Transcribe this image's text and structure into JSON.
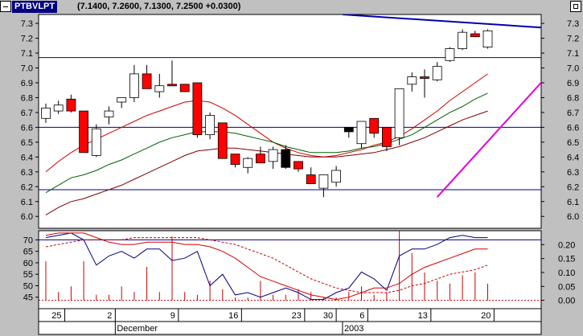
{
  "window": {
    "symbol": "PTBVLPT",
    "quote": "(7.1400, 7.2600, 7.1300, 7.2500 +0.0300)"
  },
  "colors": {
    "up_candle": "#ffffff",
    "down_candle": "#ff0000",
    "doji": "#000000",
    "trendline_up": "#e000e0",
    "trendline_resistance": "#0000b0",
    "ma_fast": "#d00000",
    "ma_mid": "#006000",
    "ma_slow": "#800000",
    "hline": "#000080",
    "osc_line": "#000080",
    "volume_bar": "#cc0000"
  },
  "icons": {
    "minimize": "minimize-icon",
    "restore": "restore-icon"
  },
  "chart_data": [
    {
      "type": "candlestick",
      "title": "",
      "y_ticks": [
        "7.3",
        "7.2",
        "7.1",
        "7.0",
        "6.9",
        "6.8",
        "6.7",
        "6.6",
        "6.5",
        "6.4",
        "6.3",
        "6.2",
        "6.1",
        "6.0"
      ],
      "ylim": [
        5.92,
        7.36
      ],
      "grid": false,
      "horizontal_lines": [
        7.07,
        6.6,
        6.18
      ],
      "trendlines": [
        {
          "name": "",
          "from": [
            23.5,
            7.36
          ],
          "to": [
            45,
            7.24
          ]
        },
        {
          "name": "",
          "from": [
            31,
            6.13
          ],
          "to": [
            42,
            7.16
          ]
        }
      ],
      "candles": [
        {
          "open": 6.66,
          "high": 6.76,
          "low": 6.63,
          "close": 6.73
        },
        {
          "open": 6.71,
          "high": 6.78,
          "low": 6.69,
          "close": 6.75
        },
        {
          "open": 6.79,
          "high": 6.82,
          "low": 6.7,
          "close": 6.71
        },
        {
          "open": 6.71,
          "high": 6.71,
          "low": 6.43,
          "close": 6.43
        },
        {
          "open": 6.41,
          "high": 6.62,
          "low": 6.4,
          "close": 6.59
        },
        {
          "open": 6.67,
          "high": 6.74,
          "low": 6.62,
          "close": 6.71
        },
        {
          "open": 6.77,
          "high": 6.8,
          "low": 6.73,
          "close": 6.8
        },
        {
          "open": 6.8,
          "high": 7.02,
          "low": 6.77,
          "close": 6.96
        },
        {
          "open": 6.96,
          "high": 7.02,
          "low": 6.86,
          "close": 6.86
        },
        {
          "open": 6.84,
          "high": 6.96,
          "low": 6.8,
          "close": 6.88
        },
        {
          "open": 6.89,
          "high": 7.05,
          "low": 6.89,
          "close": 6.89
        },
        {
          "open": 6.89,
          "high": 6.89,
          "low": 6.84,
          "close": 6.84
        },
        {
          "open": 6.9,
          "high": 6.9,
          "low": 6.53,
          "close": 6.55
        },
        {
          "open": 6.55,
          "high": 6.7,
          "low": 6.52,
          "close": 6.68
        },
        {
          "open": 6.63,
          "high": 6.63,
          "low": 6.39,
          "close": 6.39
        },
        {
          "open": 6.42,
          "high": 6.42,
          "low": 6.33,
          "close": 6.35
        },
        {
          "open": 6.33,
          "high": 6.4,
          "low": 6.29,
          "close": 6.39
        },
        {
          "open": 6.42,
          "high": 6.47,
          "low": 6.36,
          "close": 6.36
        },
        {
          "open": 6.37,
          "high": 6.47,
          "low": 6.32,
          "close": 6.45
        },
        {
          "open": 6.45,
          "high": 6.48,
          "low": 6.32,
          "close": 6.33
        },
        {
          "open": 6.37,
          "high": 6.37,
          "low": 6.3,
          "close": 6.32
        },
        {
          "open": 6.28,
          "high": 6.33,
          "low": 6.22,
          "close": 6.22
        },
        {
          "open": 6.19,
          "high": 6.28,
          "low": 6.13,
          "close": 6.28
        },
        {
          "open": 6.23,
          "high": 6.34,
          "low": 6.2,
          "close": 6.31
        },
        {
          "open": 6.57,
          "high": 6.6,
          "low": 6.53,
          "close": 6.6
        },
        {
          "open": 6.49,
          "high": 6.64,
          "low": 6.46,
          "close": 6.64
        },
        {
          "open": 6.66,
          "high": 6.66,
          "low": 6.53,
          "close": 6.56
        },
        {
          "open": 6.6,
          "high": 6.6,
          "low": 6.44,
          "close": 6.47
        },
        {
          "open": 6.53,
          "high": 6.86,
          "low": 6.48,
          "close": 6.86
        },
        {
          "open": 6.89,
          "high": 6.97,
          "low": 6.84,
          "close": 6.94
        },
        {
          "open": 6.94,
          "high": 6.99,
          "low": 6.8,
          "close": 6.94
        },
        {
          "open": 6.92,
          "high": 7.04,
          "low": 6.91,
          "close": 7.01
        },
        {
          "open": 7.05,
          "high": 7.14,
          "low": 7.04,
          "close": 7.13
        },
        {
          "open": 7.13,
          "high": 7.26,
          "low": 7.12,
          "close": 7.24
        },
        {
          "open": 7.23,
          "high": 7.25,
          "low": 7.21,
          "close": 7.21
        },
        {
          "open": 7.14,
          "high": 7.26,
          "low": 7.13,
          "close": 7.25
        }
      ],
      "moving_averages": [
        {
          "name": "",
          "color_key": "ma_fast",
          "values": [
            6.3,
            6.37,
            6.43,
            6.48,
            6.52,
            6.56,
            6.6,
            6.64,
            6.68,
            6.71,
            6.74,
            6.77,
            6.78,
            6.77,
            6.73,
            6.68,
            6.62,
            6.56,
            6.5,
            6.46,
            6.43,
            6.41,
            6.4,
            6.41,
            6.43,
            6.45,
            6.48,
            6.5,
            6.54,
            6.59,
            6.65,
            6.71,
            6.78,
            6.84,
            6.9,
            6.96
          ]
        },
        {
          "name": "",
          "color_key": "ma_mid",
          "values": [
            6.16,
            6.21,
            6.26,
            6.28,
            6.31,
            6.35,
            6.38,
            6.42,
            6.46,
            6.5,
            6.53,
            6.55,
            6.57,
            6.57,
            6.57,
            6.56,
            6.54,
            6.52,
            6.5,
            6.47,
            6.45,
            6.43,
            6.43,
            6.43,
            6.44,
            6.46,
            6.47,
            6.49,
            6.52,
            6.55,
            6.6,
            6.65,
            6.7,
            6.74,
            6.79,
            6.83
          ]
        },
        {
          "name": "",
          "color_key": "ma_slow",
          "values": [
            6.01,
            6.06,
            6.1,
            6.12,
            6.15,
            6.18,
            6.21,
            6.25,
            6.29,
            6.33,
            6.37,
            6.41,
            6.44,
            6.45,
            6.46,
            6.46,
            6.45,
            6.44,
            6.43,
            6.42,
            6.41,
            6.4,
            6.4,
            6.4,
            6.41,
            6.42,
            6.43,
            6.45,
            6.47,
            6.5,
            6.53,
            6.57,
            6.61,
            6.65,
            6.68,
            6.71
          ]
        }
      ]
    },
    {
      "type": "oscillator",
      "left_ticks": [
        "70",
        "65",
        "60",
        "55",
        "50",
        "45"
      ],
      "right_ticks": [
        "0.20",
        "0.15",
        "0.10",
        "0.05",
        "0.00"
      ],
      "ylim_left": [
        40,
        74
      ],
      "ylim_right": [
        -0.03,
        0.25
      ],
      "reference_line": 70,
      "series": [
        {
          "name": "",
          "color_key": "osc_line",
          "style": "solid",
          "values": [
            71,
            72,
            73,
            70,
            59,
            63,
            65,
            62,
            66,
            66,
            61,
            62,
            65,
            50,
            55,
            46,
            47,
            45,
            47,
            49,
            47,
            44,
            44,
            47,
            49,
            56,
            53,
            48,
            63,
            66,
            66,
            68,
            71,
            72,
            71,
            71
          ]
        },
        {
          "name": "",
          "color_key": "ma_fast",
          "style": "solid",
          "values": [
            72,
            73,
            73,
            73,
            71,
            69,
            68,
            68,
            69,
            69,
            69,
            68,
            68,
            67,
            65,
            62,
            58,
            54,
            52,
            50,
            48,
            46,
            45,
            44,
            45,
            47,
            49,
            49,
            51,
            55,
            58,
            60,
            62,
            64,
            66,
            66
          ]
        },
        {
          "name": "",
          "color_key": "ma_fast",
          "style": "dashed",
          "values": [
            67,
            68,
            69,
            70,
            70,
            70,
            70,
            71,
            71,
            71,
            71,
            71,
            71,
            70,
            69,
            68,
            66,
            64,
            62,
            59,
            56,
            53,
            51,
            49,
            48,
            47,
            47,
            47,
            48,
            50,
            51,
            53,
            55,
            56,
            57,
            59
          ]
        }
      ],
      "volume": [
        0.14,
        0.03,
        0.05,
        0.14,
        0.02,
        0.02,
        0.05,
        0.03,
        0.12,
        0.03,
        0.23,
        0.03,
        0.02,
        0.07,
        0.04,
        0.01,
        0.01,
        0.07,
        0.02,
        0.02,
        0.04,
        0.03,
        0.01,
        0.01,
        0.03,
        0.05,
        0.02,
        0.03,
        0.25,
        0.17,
        0.1,
        0.07,
        0.06,
        0.09,
        0.1,
        0.06
      ]
    }
  ],
  "x_axis": {
    "day_ticks": [
      {
        "label": "25",
        "index": 1.5
      },
      {
        "label": "2",
        "index": 5.5
      },
      {
        "label": "9",
        "index": 10.5
      },
      {
        "label": "16",
        "index": 15.5
      },
      {
        "label": "23",
        "index": 20.5
      },
      {
        "label": "30",
        "index": 23
      },
      {
        "label": "6",
        "index": 25.5
      },
      {
        "label": "13",
        "index": 30.5
      },
      {
        "label": "20",
        "index": 35.5
      }
    ],
    "period_labels": [
      {
        "label": "December",
        "index": 5.5
      },
      {
        "label": "2003",
        "index": 23.5
      }
    ]
  }
}
